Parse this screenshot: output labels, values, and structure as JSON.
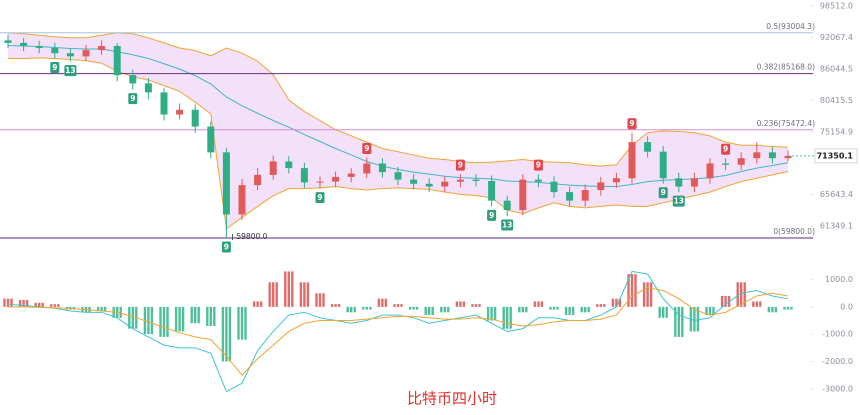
{
  "chart_data": [
    {
      "type": "candlestick",
      "title": "比特币四小时",
      "log_scale": true,
      "up_color": "#e05a5a",
      "down_color": "#2fae85",
      "open": [
        91500,
        91000,
        90400,
        90000,
        89000,
        88400,
        89600,
        90400,
        84900,
        83400,
        81800,
        78000,
        78800,
        76000,
        71900,
        62900,
        67000,
        68500,
        70500,
        69500,
        67400,
        67500,
        68200,
        68700,
        70200,
        68900,
        67800,
        67200,
        66800,
        67500,
        67800,
        67600,
        64800,
        63500,
        67800,
        67500,
        66000,
        64800,
        66300,
        67400,
        68000,
        73500,
        72000,
        68000,
        66800,
        68000,
        70200,
        70000,
        71000,
        71900,
        71000
      ],
      "high": [
        92600,
        92000,
        91400,
        91000,
        90000,
        90600,
        91500,
        91000,
        85900,
        84400,
        82600,
        79900,
        79700,
        76800,
        72600,
        67900,
        69500,
        71400,
        71300,
        70300,
        68300,
        69000,
        69500,
        71100,
        71000,
        69700,
        68600,
        68000,
        68300,
        68600,
        68600,
        68400,
        65500,
        68600,
        68600,
        68300,
        66800,
        67100,
        68200,
        68800,
        75000,
        74400,
        72900,
        68800,
        68800,
        71000,
        71000,
        71900,
        73500,
        72800,
        72200
      ],
      "low": [
        90000,
        89400,
        89000,
        88000,
        87400,
        87500,
        88700,
        83800,
        82300,
        80600,
        77000,
        77200,
        75000,
        71000,
        59800,
        62200,
        66300,
        67800,
        68700,
        66600,
        66500,
        66700,
        67400,
        68000,
        68100,
        67000,
        66400,
        66000,
        66000,
        66700,
        66800,
        64000,
        62700,
        62800,
        66700,
        65200,
        64000,
        64000,
        65500,
        66600,
        67200,
        71100,
        67200,
        66000,
        66000,
        67200,
        69200,
        69200,
        70200,
        70200,
        70500
      ],
      "close": [
        91000,
        90400,
        90000,
        89000,
        88400,
        89600,
        90400,
        84900,
        83400,
        81800,
        78000,
        78800,
        76000,
        71900,
        62900,
        67000,
        68500,
        70500,
        69500,
        67400,
        67500,
        68200,
        68700,
        70200,
        68900,
        67800,
        67200,
        66800,
        67500,
        67800,
        67600,
        64800,
        63500,
        67800,
        67500,
        66000,
        64800,
        66300,
        67400,
        68000,
        73500,
        72000,
        68000,
        66800,
        68000,
        70200,
        70000,
        71000,
        71900,
        71000,
        71350.1
      ],
      "bands": {
        "upper": [
          93000,
          92800,
          92500,
          92200,
          92000,
          92000,
          92500,
          93000,
          92800,
          92000,
          91000,
          90000,
          89500,
          88500,
          90000,
          89000,
          87500,
          85000,
          80500,
          78500,
          77000,
          75500,
          74500,
          73500,
          72500,
          72000,
          71500,
          71000,
          70800,
          70500,
          70300,
          70400,
          70600,
          70800,
          70500,
          70400,
          70300,
          70000,
          69800,
          70000,
          73000,
          75000,
          75300,
          75200,
          75000,
          74500,
          73500,
          73000,
          73000,
          72800,
          72700
        ],
        "middle": [
          90500,
          90400,
          90300,
          90100,
          89900,
          89800,
          89800,
          89300,
          88700,
          88000,
          87000,
          86000,
          84800,
          83300,
          81000,
          79500,
          78200,
          77000,
          75900,
          74700,
          73600,
          72500,
          71500,
          70500,
          69800,
          69300,
          68900,
          68600,
          68300,
          68100,
          68000,
          67900,
          67600,
          67500,
          67400,
          67200,
          67000,
          66900,
          66800,
          66800,
          67100,
          67500,
          67700,
          67800,
          67900,
          68100,
          68400,
          69000,
          69500,
          69900,
          70300
        ],
        "lower": [
          88000,
          88000,
          88100,
          88000,
          87800,
          87600,
          87100,
          85600,
          84600,
          84000,
          83000,
          82000,
          80100,
          78100,
          61000,
          62500,
          64000,
          65500,
          66500,
          66500,
          66600,
          66800,
          66500,
          66300,
          66500,
          66600,
          66500,
          66400,
          66000,
          65700,
          65500,
          65200,
          63500,
          63000,
          63800,
          64500,
          64000,
          63800,
          64000,
          64200,
          64000,
          64000,
          64500,
          65000,
          65500,
          66000,
          66800,
          67500,
          68000,
          68500,
          69000
        ],
        "band_color": "#f2a431",
        "middle_color": "#3fb6c6",
        "fill": "#e9c8f5"
      },
      "levels": [
        {
          "value": 93004.3,
          "label": "0.5(93004.3)",
          "color": "#a9c2e6"
        },
        {
          "value": 85168.0,
          "label": "0.382(85168.0)",
          "color": "#6b2a8c"
        },
        {
          "value": 75472.4,
          "label": "0.236(75472.4)",
          "color": "#d98ad6"
        },
        {
          "value": 59800.0,
          "label": "0(59800.0)",
          "color": "#5b2a86"
        }
      ],
      "low_label": {
        "value": 59800,
        "label": "59800.0"
      },
      "annotations": [
        {
          "text": "9",
          "color": "#2e9e7e"
        },
        {
          "text": "13",
          "color": "#2e9e7e"
        },
        {
          "text": "9",
          "color": "#2e9e7e"
        },
        {
          "text": "9",
          "color": "#2e9e7e"
        },
        {
          "text": "9",
          "color": "#2e9e7e"
        },
        {
          "text": "9",
          "color": "#e0474c"
        },
        {
          "text": "9",
          "color": "#e0474c"
        },
        {
          "text": "9",
          "color": "#e0474c"
        },
        {
          "text": "9",
          "color": "#2e9e7e"
        },
        {
          "text": "13",
          "color": "#2e9e7e"
        },
        {
          "text": "9",
          "color": "#e0474c"
        },
        {
          "text": "9",
          "color": "#2e9e7e"
        },
        {
          "text": "13",
          "color": "#2e9e7e"
        },
        {
          "text": "9",
          "color": "#e0474c"
        }
      ],
      "ylim": [
        58900,
        99800
      ],
      "yticks": [
        {
          "value": 98512.0,
          "label": "98512.0"
        },
        {
          "value": 92067.4,
          "label": "92067.4"
        },
        {
          "value": 86044.5,
          "label": "86044.5"
        },
        {
          "value": 80415.5,
          "label": "80415.5"
        },
        {
          "value": 75154.9,
          "label": "75154.9"
        },
        {
          "value": 65643.4,
          "label": "65643.4"
        },
        {
          "value": 61349.1,
          "label": "61349.1"
        }
      ]
    },
    {
      "type": "macd",
      "histogram": [
        300,
        250,
        150,
        100,
        -100,
        -200,
        -150,
        -400,
        -800,
        -1000,
        -1100,
        -900,
        -600,
        -700,
        -2000,
        -1200,
        200,
        900,
        1300,
        900,
        500,
        100,
        -200,
        -100,
        300,
        100,
        -100,
        -300,
        -200,
        200,
        100,
        -500,
        -800,
        -200,
        200,
        -100,
        -300,
        -200,
        100,
        300,
        1200,
        900,
        -400,
        -1100,
        -900,
        -300,
        400,
        900,
        200,
        -200,
        -100
      ],
      "dif": [
        100,
        50,
        0,
        -50,
        -150,
        -200,
        -200,
        -400,
        -800,
        -1100,
        -1400,
        -1500,
        -1500,
        -1700,
        -3100,
        -2800,
        -1600,
        -900,
        -300,
        -200,
        -400,
        -500,
        -600,
        -500,
        -300,
        -300,
        -400,
        -600,
        -500,
        -400,
        -300,
        -600,
        -900,
        -800,
        -400,
        -400,
        -500,
        -500,
        -300,
        0,
        1300,
        1200,
        300,
        -300,
        -500,
        -400,
        100,
        500,
        600,
        400,
        300
      ],
      "dea": [
        0,
        0,
        -20,
        -30,
        -60,
        -100,
        -150,
        -200,
        -350,
        -550,
        -750,
        -950,
        -1100,
        -1200,
        -1800,
        -2500,
        -1900,
        -1400,
        -900,
        -600,
        -500,
        -500,
        -500,
        -450,
        -400,
        -350,
        -350,
        -400,
        -450,
        -450,
        -400,
        -450,
        -600,
        -700,
        -650,
        -550,
        -500,
        -500,
        -450,
        -300,
        400,
        700,
        600,
        300,
        -100,
        -300,
        -200,
        100,
        400,
        500,
        400
      ],
      "up_color": "#e06b6b",
      "down_color": "#4cc09a",
      "dif_color": "#3fc3d0",
      "dea_color": "#f2a431",
      "ylim": [
        -3850,
        1900
      ],
      "yticks": [
        {
          "value": 1000,
          "label": "1000.0"
        },
        {
          "value": 0,
          "label": "0.0"
        },
        {
          "value": -1000,
          "label": "-1000.0"
        },
        {
          "value": -2000,
          "label": "-2000.0"
        },
        {
          "value": -3000,
          "label": "-3000.0"
        }
      ]
    }
  ]
}
